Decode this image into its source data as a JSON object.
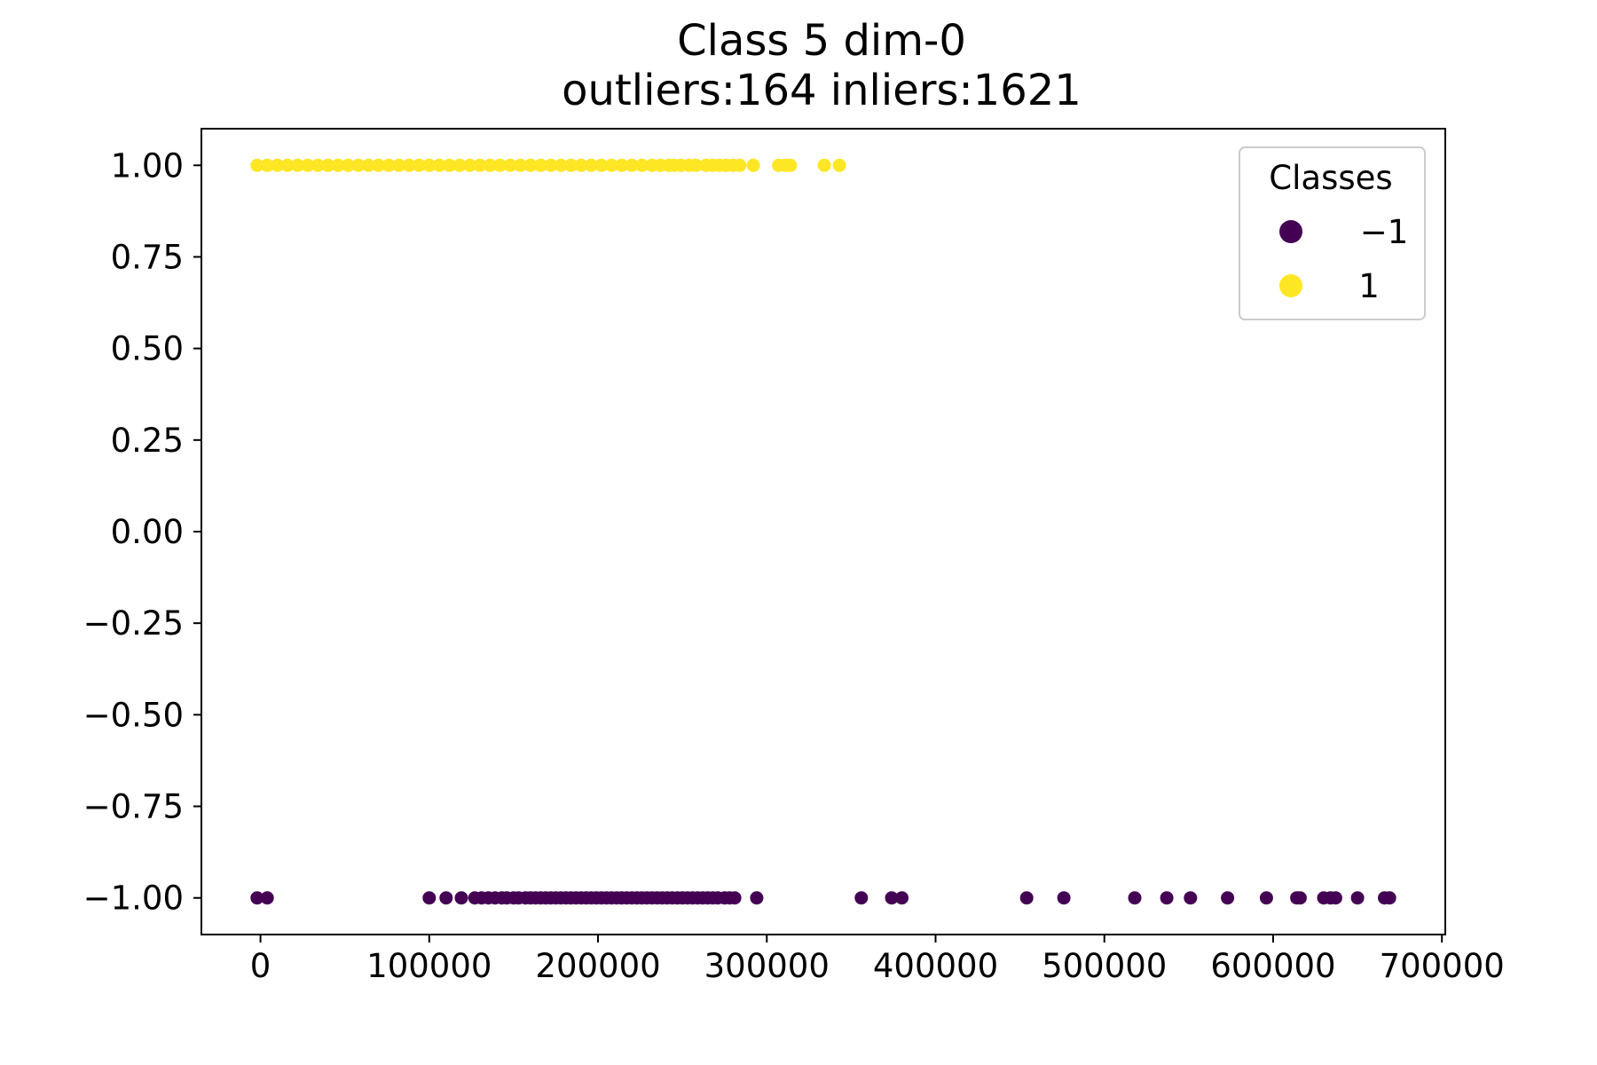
{
  "chart_data": {
    "type": "scatter",
    "title": "Class 5 dim-0",
    "subtitle": "outliers:164  inliers:1621",
    "xlabel": "",
    "ylabel": "",
    "xlim": [
      -35000,
      702000
    ],
    "ylim": [
      -1.1,
      1.1
    ],
    "x_ticks": [
      0,
      100000,
      200000,
      300000,
      400000,
      500000,
      600000,
      700000
    ],
    "x_tick_labels": [
      "0",
      "100000",
      "200000",
      "300000",
      "400000",
      "500000",
      "600000",
      "700000"
    ],
    "y_ticks": [
      1.0,
      0.75,
      0.5,
      0.25,
      0.0,
      -0.25,
      -0.5,
      -0.75,
      -1.0
    ],
    "y_tick_labels": [
      "1.00",
      "0.75",
      "0.50",
      "0.25",
      "0.00",
      "−0.25",
      "−0.50",
      "−0.75",
      "−1.00"
    ],
    "grid": false,
    "legend": {
      "title": "Classes",
      "placement": "top-right"
    },
    "series": [
      {
        "name": "−1",
        "color": "#440154",
        "y": -1,
        "x": [
          -2000,
          4000,
          100000,
          110000,
          119000,
          127000,
          131000,
          135000,
          139000,
          143000,
          146000,
          150000,
          153000,
          157000,
          160000,
          163000,
          166000,
          169000,
          172000,
          175000,
          178000,
          181000,
          184000,
          187000,
          190000,
          193000,
          196000,
          199000,
          202000,
          205000,
          208000,
          211000,
          214000,
          217000,
          220000,
          223000,
          226000,
          229000,
          232000,
          235000,
          238000,
          241000,
          244000,
          247000,
          250000,
          253000,
          256000,
          259000,
          262000,
          265000,
          268000,
          271000,
          275000,
          278000,
          281000,
          294000,
          356000,
          374000,
          380000,
          454000,
          476000,
          518000,
          537000,
          551000,
          573000,
          596000,
          614000,
          616000,
          630000,
          634000,
          637000,
          650000,
          666000,
          669000
        ]
      },
      {
        "name": "1",
        "color": "#fde725",
        "y": 1,
        "x": [
          -2000,
          4000,
          10000,
          16000,
          22000,
          28000,
          34000,
          40000,
          46000,
          52000,
          58000,
          64000,
          70000,
          76000,
          82000,
          88000,
          94000,
          100000,
          106000,
          112000,
          118000,
          124000,
          130000,
          136000,
          142000,
          148000,
          154000,
          160000,
          166000,
          172000,
          178000,
          184000,
          190000,
          196000,
          202000,
          208000,
          214000,
          220000,
          226000,
          232000,
          237000,
          242000,
          245000,
          249000,
          254000,
          258000,
          264000,
          268000,
          272000,
          276000,
          280000,
          284000,
          292000,
          307000,
          311000,
          314000,
          334000,
          343000
        ]
      }
    ]
  }
}
